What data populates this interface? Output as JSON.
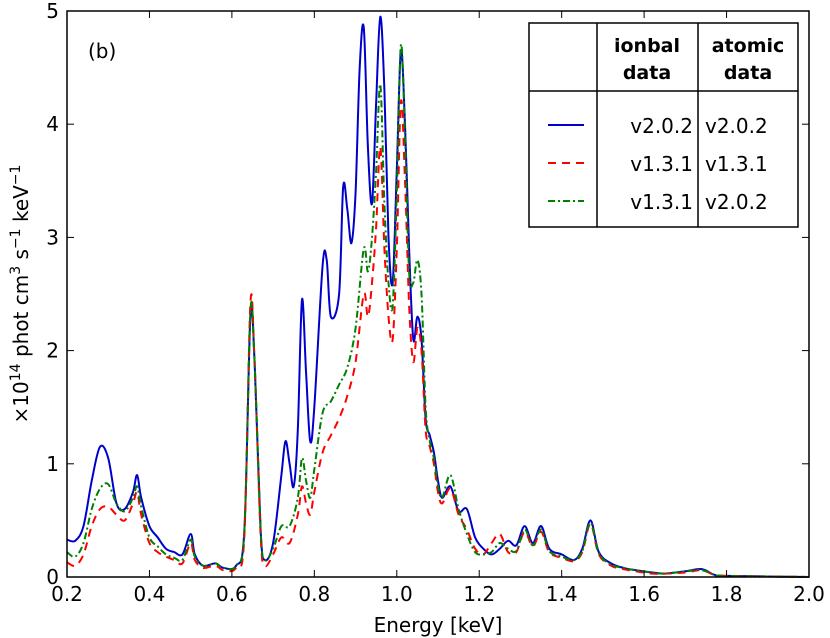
{
  "chart_data": {
    "type": "line",
    "panel_label": "(b)",
    "xlabel": "Energy [keV]",
    "ylabel": {
      "prefix": "×10",
      "exponent": "14",
      "unit": " phot cm",
      "cm_exp": "3",
      "s": " s",
      "s_exp": "−1",
      "kev": " keV",
      "kev_exp": "−1"
    },
    "xlim": [
      0.2,
      2.0
    ],
    "ylim": [
      0,
      5
    ],
    "xticks": [
      "0.2",
      "0.4",
      "0.6",
      "0.8",
      "1.0",
      "1.2",
      "1.4",
      "1.6",
      "1.8",
      "2.0"
    ],
    "yticks": [
      "0",
      "1",
      "2",
      "3",
      "4",
      "5"
    ],
    "legend": {
      "placement": "top-right",
      "headers": [
        "ionbal data",
        "atomic data"
      ],
      "header_lines": [
        [
          "ionbal",
          "data"
        ],
        [
          "atomic",
          "data"
        ]
      ],
      "rows": [
        {
          "ionbal": "v2.0.2",
          "atomic": "v2.0.2",
          "color": "#0000cc",
          "dash": "solid"
        },
        {
          "ionbal": "v1.3.1",
          "atomic": "v1.3.1",
          "color": "#ff0000",
          "dash": "dashed"
        },
        {
          "ionbal": "v1.3.1",
          "atomic": "v2.0.2",
          "color": "#008000",
          "dash": "dashdot"
        }
      ]
    },
    "series": [
      {
        "color": "#0000cc",
        "dash": "solid",
        "points": [
          [
            0.2,
            0.33
          ],
          [
            0.22,
            0.32
          ],
          [
            0.24,
            0.45
          ],
          [
            0.26,
            0.85
          ],
          [
            0.28,
            1.15
          ],
          [
            0.3,
            1.05
          ],
          [
            0.32,
            0.65
          ],
          [
            0.34,
            0.6
          ],
          [
            0.36,
            0.75
          ],
          [
            0.37,
            0.9
          ],
          [
            0.38,
            0.7
          ],
          [
            0.4,
            0.45
          ],
          [
            0.42,
            0.35
          ],
          [
            0.44,
            0.25
          ],
          [
            0.46,
            0.22
          ],
          [
            0.48,
            0.2
          ],
          [
            0.5,
            0.38
          ],
          [
            0.51,
            0.2
          ],
          [
            0.53,
            0.1
          ],
          [
            0.56,
            0.12
          ],
          [
            0.58,
            0.08
          ],
          [
            0.61,
            0.1
          ],
          [
            0.63,
            0.4
          ],
          [
            0.645,
            2.3
          ],
          [
            0.655,
            1.9
          ],
          [
            0.67,
            0.4
          ],
          [
            0.68,
            0.15
          ],
          [
            0.7,
            0.3
          ],
          [
            0.72,
            0.9
          ],
          [
            0.73,
            1.2
          ],
          [
            0.74,
            1.0
          ],
          [
            0.75,
            0.8
          ],
          [
            0.76,
            1.3
          ],
          [
            0.77,
            2.45
          ],
          [
            0.78,
            1.8
          ],
          [
            0.79,
            1.2
          ],
          [
            0.8,
            1.5
          ],
          [
            0.82,
            2.75
          ],
          [
            0.83,
            2.8
          ],
          [
            0.84,
            2.3
          ],
          [
            0.86,
            2.5
          ],
          [
            0.87,
            3.45
          ],
          [
            0.88,
            3.25
          ],
          [
            0.89,
            2.95
          ],
          [
            0.9,
            3.4
          ],
          [
            0.91,
            4.5
          ],
          [
            0.92,
            4.85
          ],
          [
            0.93,
            3.8
          ],
          [
            0.94,
            3.3
          ],
          [
            0.95,
            4.2
          ],
          [
            0.96,
            4.95
          ],
          [
            0.97,
            4.3
          ],
          [
            0.98,
            3.0
          ],
          [
            0.99,
            2.6
          ],
          [
            1.0,
            3.6
          ],
          [
            1.01,
            4.65
          ],
          [
            1.02,
            4.0
          ],
          [
            1.03,
            2.9
          ],
          [
            1.04,
            2.1
          ],
          [
            1.05,
            2.3
          ],
          [
            1.06,
            2.1
          ],
          [
            1.07,
            1.4
          ],
          [
            1.08,
            1.25
          ],
          [
            1.09,
            1.1
          ],
          [
            1.1,
            0.85
          ],
          [
            1.11,
            0.7
          ],
          [
            1.13,
            0.8
          ],
          [
            1.15,
            0.58
          ],
          [
            1.17,
            0.6
          ],
          [
            1.19,
            0.35
          ],
          [
            1.21,
            0.25
          ],
          [
            1.23,
            0.2
          ],
          [
            1.25,
            0.25
          ],
          [
            1.27,
            0.32
          ],
          [
            1.29,
            0.28
          ],
          [
            1.31,
            0.45
          ],
          [
            1.33,
            0.3
          ],
          [
            1.35,
            0.45
          ],
          [
            1.37,
            0.25
          ],
          [
            1.4,
            0.2
          ],
          [
            1.43,
            0.15
          ],
          [
            1.45,
            0.25
          ],
          [
            1.47,
            0.5
          ],
          [
            1.49,
            0.22
          ],
          [
            1.52,
            0.12
          ],
          [
            1.55,
            0.08
          ],
          [
            1.58,
            0.06
          ],
          [
            1.62,
            0.04
          ],
          [
            1.65,
            0.03
          ],
          [
            1.7,
            0.05
          ],
          [
            1.74,
            0.07
          ],
          [
            1.77,
            0.02
          ],
          [
            1.8,
            0.01
          ],
          [
            2.0,
            0.0
          ]
        ]
      },
      {
        "color": "#ff0000",
        "dash": "dashed",
        "points": [
          [
            0.2,
            0.13
          ],
          [
            0.22,
            0.1
          ],
          [
            0.24,
            0.2
          ],
          [
            0.26,
            0.45
          ],
          [
            0.28,
            0.6
          ],
          [
            0.3,
            0.62
          ],
          [
            0.32,
            0.55
          ],
          [
            0.34,
            0.5
          ],
          [
            0.36,
            0.65
          ],
          [
            0.37,
            0.75
          ],
          [
            0.38,
            0.55
          ],
          [
            0.4,
            0.3
          ],
          [
            0.42,
            0.22
          ],
          [
            0.44,
            0.18
          ],
          [
            0.46,
            0.15
          ],
          [
            0.48,
            0.12
          ],
          [
            0.5,
            0.3
          ],
          [
            0.51,
            0.15
          ],
          [
            0.53,
            0.08
          ],
          [
            0.56,
            0.1
          ],
          [
            0.58,
            0.06
          ],
          [
            0.61,
            0.08
          ],
          [
            0.63,
            0.35
          ],
          [
            0.645,
            2.42
          ],
          [
            0.655,
            1.9
          ],
          [
            0.67,
            0.35
          ],
          [
            0.68,
            0.1
          ],
          [
            0.7,
            0.2
          ],
          [
            0.72,
            0.35
          ],
          [
            0.74,
            0.3
          ],
          [
            0.76,
            0.55
          ],
          [
            0.77,
            0.8
          ],
          [
            0.78,
            0.65
          ],
          [
            0.79,
            0.55
          ],
          [
            0.8,
            0.75
          ],
          [
            0.82,
            1.1
          ],
          [
            0.84,
            1.25
          ],
          [
            0.86,
            1.4
          ],
          [
            0.88,
            1.6
          ],
          [
            0.9,
            1.9
          ],
          [
            0.92,
            2.5
          ],
          [
            0.93,
            2.3
          ],
          [
            0.94,
            2.6
          ],
          [
            0.95,
            3.1
          ],
          [
            0.96,
            3.8
          ],
          [
            0.97,
            2.9
          ],
          [
            0.98,
            2.3
          ],
          [
            0.99,
            2.1
          ],
          [
            1.0,
            2.9
          ],
          [
            1.01,
            4.2
          ],
          [
            1.02,
            3.5
          ],
          [
            1.03,
            2.4
          ],
          [
            1.04,
            1.9
          ],
          [
            1.05,
            2.2
          ],
          [
            1.06,
            2.0
          ],
          [
            1.07,
            1.3
          ],
          [
            1.08,
            1.15
          ],
          [
            1.09,
            1.0
          ],
          [
            1.1,
            0.75
          ],
          [
            1.11,
            0.65
          ],
          [
            1.13,
            0.78
          ],
          [
            1.15,
            0.55
          ],
          [
            1.17,
            0.42
          ],
          [
            1.19,
            0.25
          ],
          [
            1.21,
            0.2
          ],
          [
            1.23,
            0.3
          ],
          [
            1.25,
            0.38
          ],
          [
            1.27,
            0.22
          ],
          [
            1.29,
            0.22
          ],
          [
            1.31,
            0.4
          ],
          [
            1.33,
            0.27
          ],
          [
            1.35,
            0.4
          ],
          [
            1.37,
            0.22
          ],
          [
            1.4,
            0.17
          ],
          [
            1.43,
            0.14
          ],
          [
            1.45,
            0.22
          ],
          [
            1.47,
            0.47
          ],
          [
            1.49,
            0.2
          ],
          [
            1.52,
            0.1
          ],
          [
            1.55,
            0.07
          ],
          [
            1.58,
            0.05
          ],
          [
            1.62,
            0.03
          ],
          [
            1.65,
            0.03
          ],
          [
            1.7,
            0.04
          ],
          [
            1.74,
            0.06
          ],
          [
            1.77,
            0.02
          ],
          [
            1.8,
            0.01
          ],
          [
            2.0,
            0.0
          ]
        ]
      },
      {
        "color": "#008000",
        "dash": "dashdot",
        "points": [
          [
            0.2,
            0.22
          ],
          [
            0.22,
            0.18
          ],
          [
            0.24,
            0.3
          ],
          [
            0.26,
            0.6
          ],
          [
            0.28,
            0.78
          ],
          [
            0.3,
            0.82
          ],
          [
            0.32,
            0.65
          ],
          [
            0.34,
            0.58
          ],
          [
            0.36,
            0.7
          ],
          [
            0.37,
            0.8
          ],
          [
            0.38,
            0.62
          ],
          [
            0.4,
            0.35
          ],
          [
            0.42,
            0.27
          ],
          [
            0.44,
            0.2
          ],
          [
            0.46,
            0.17
          ],
          [
            0.48,
            0.15
          ],
          [
            0.5,
            0.33
          ],
          [
            0.51,
            0.18
          ],
          [
            0.53,
            0.1
          ],
          [
            0.56,
            0.12
          ],
          [
            0.58,
            0.08
          ],
          [
            0.61,
            0.1
          ],
          [
            0.63,
            0.4
          ],
          [
            0.645,
            2.35
          ],
          [
            0.655,
            1.9
          ],
          [
            0.67,
            0.4
          ],
          [
            0.68,
            0.15
          ],
          [
            0.7,
            0.25
          ],
          [
            0.72,
            0.45
          ],
          [
            0.74,
            0.45
          ],
          [
            0.76,
            0.7
          ],
          [
            0.77,
            1.05
          ],
          [
            0.78,
            0.85
          ],
          [
            0.79,
            0.7
          ],
          [
            0.8,
            0.95
          ],
          [
            0.82,
            1.45
          ],
          [
            0.84,
            1.55
          ],
          [
            0.86,
            1.7
          ],
          [
            0.88,
            1.85
          ],
          [
            0.9,
            2.2
          ],
          [
            0.92,
            2.9
          ],
          [
            0.93,
            2.7
          ],
          [
            0.94,
            3.0
          ],
          [
            0.95,
            3.6
          ],
          [
            0.96,
            4.35
          ],
          [
            0.97,
            3.3
          ],
          [
            0.98,
            2.6
          ],
          [
            0.99,
            2.4
          ],
          [
            1.0,
            3.4
          ],
          [
            1.01,
            4.7
          ],
          [
            1.02,
            3.9
          ],
          [
            1.03,
            2.7
          ],
          [
            1.04,
            2.6
          ],
          [
            1.05,
            2.8
          ],
          [
            1.06,
            2.5
          ],
          [
            1.07,
            1.5
          ],
          [
            1.08,
            1.2
          ],
          [
            1.09,
            1.05
          ],
          [
            1.1,
            0.8
          ],
          [
            1.11,
            0.7
          ],
          [
            1.13,
            0.9
          ],
          [
            1.15,
            0.6
          ],
          [
            1.17,
            0.38
          ],
          [
            1.19,
            0.22
          ],
          [
            1.21,
            0.2
          ],
          [
            1.23,
            0.22
          ],
          [
            1.25,
            0.3
          ],
          [
            1.27,
            0.25
          ],
          [
            1.29,
            0.23
          ],
          [
            1.31,
            0.42
          ],
          [
            1.33,
            0.28
          ],
          [
            1.35,
            0.42
          ],
          [
            1.37,
            0.23
          ],
          [
            1.4,
            0.18
          ],
          [
            1.43,
            0.15
          ],
          [
            1.45,
            0.23
          ],
          [
            1.47,
            0.48
          ],
          [
            1.49,
            0.21
          ],
          [
            1.52,
            0.11
          ],
          [
            1.55,
            0.08
          ],
          [
            1.58,
            0.06
          ],
          [
            1.62,
            0.04
          ],
          [
            1.65,
            0.03
          ],
          [
            1.7,
            0.05
          ],
          [
            1.74,
            0.06
          ],
          [
            1.77,
            0.02
          ],
          [
            1.8,
            0.01
          ],
          [
            2.0,
            0.0
          ]
        ]
      }
    ]
  }
}
